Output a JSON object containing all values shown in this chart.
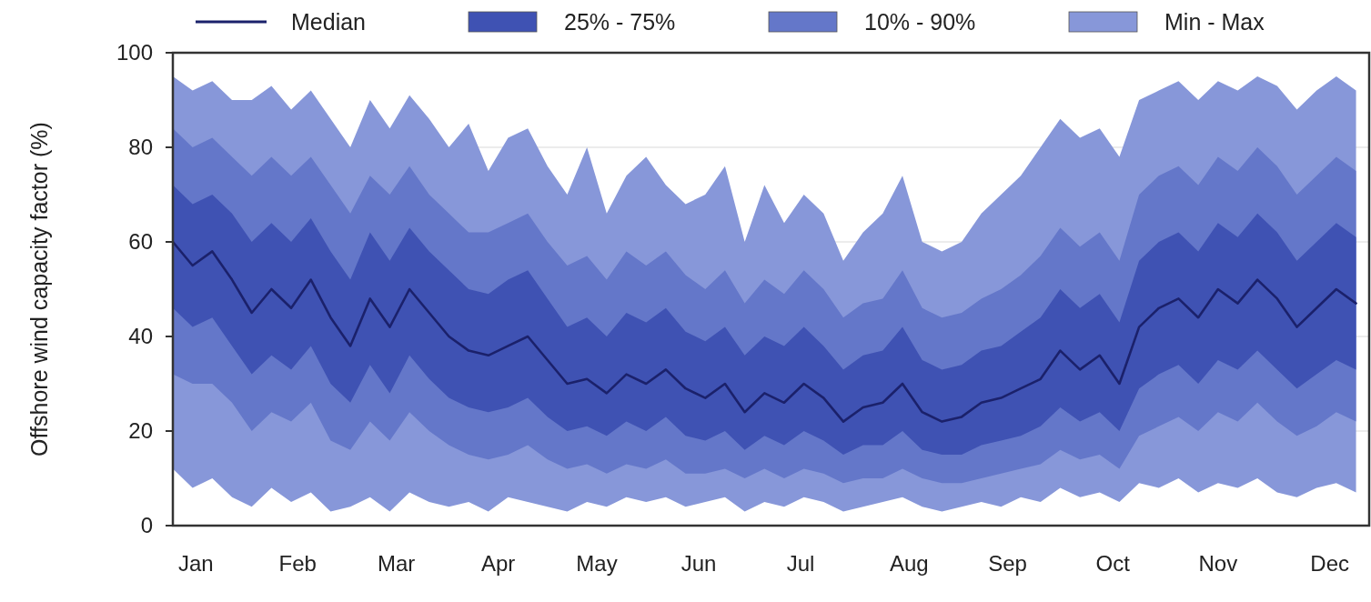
{
  "chart_data": {
    "type": "line",
    "ylabel": "Offshore wind capacity factor (%)",
    "x": [
      "--01-01",
      "--01-07",
      "--01-13",
      "--01-19",
      "--01-25",
      "--01-31",
      "--02-06",
      "--02-12",
      "--02-18",
      "--02-24",
      "--03-02",
      "--03-08",
      "--03-14",
      "--03-20",
      "--03-26",
      "--04-01",
      "--04-07",
      "--04-13",
      "--04-19",
      "--04-25",
      "--05-01",
      "--05-07",
      "--05-13",
      "--05-19",
      "--05-25",
      "--05-31",
      "--06-06",
      "--06-12",
      "--06-18",
      "--06-24",
      "--06-30",
      "--07-06",
      "--07-12",
      "--07-18",
      "--07-24",
      "--07-30",
      "--08-05",
      "--08-11",
      "--08-17",
      "--08-23",
      "--08-29",
      "--09-04",
      "--09-10",
      "--09-16",
      "--09-22",
      "--09-28",
      "--10-04",
      "--10-10",
      "--10-16",
      "--10-22",
      "--10-28",
      "--11-03",
      "--11-09",
      "--11-15",
      "--11-21",
      "--11-27",
      "--12-03",
      "--12-09",
      "--12-15",
      "--12-21",
      "--12-27"
    ],
    "xlim": [
      "--01-01",
      "--12-31"
    ],
    "xticks": [
      {
        "value": "--01-08",
        "label": "Jan"
      },
      {
        "value": "--02-08",
        "label": "Feb"
      },
      {
        "value": "--03-10",
        "label": "Mar"
      },
      {
        "value": "--04-10",
        "label": "Apr"
      },
      {
        "value": "--05-10",
        "label": "May"
      },
      {
        "value": "--06-10",
        "label": "Jun"
      },
      {
        "value": "--07-11",
        "label": "Jul"
      },
      {
        "value": "--08-13",
        "label": "Aug"
      },
      {
        "value": "--09-12",
        "label": "Sep"
      },
      {
        "value": "--10-14",
        "label": "Oct"
      },
      {
        "value": "--11-15",
        "label": "Nov"
      },
      {
        "value": "--12-19",
        "label": "Dec"
      }
    ],
    "ylim": [
      0,
      100
    ],
    "yticks": [
      0,
      20,
      40,
      60,
      80,
      100
    ],
    "grid": "y",
    "legend": "top",
    "series": [
      {
        "name": "Median",
        "color": "#1b216b",
        "values": [
          60,
          55,
          58,
          52,
          45,
          50,
          46,
          52,
          44,
          38,
          48,
          42,
          50,
          45,
          40,
          37,
          36,
          38,
          40,
          35,
          30,
          31,
          28,
          32,
          30,
          33,
          29,
          27,
          30,
          24,
          28,
          26,
          30,
          27,
          22,
          25,
          26,
          30,
          24,
          22,
          23,
          26,
          27,
          29,
          31,
          37,
          33,
          36,
          30,
          42,
          46,
          48,
          44,
          50,
          47,
          52,
          48,
          42,
          46,
          50,
          47
        ]
      },
      {
        "name": "25% - 75%",
        "color": "#3f52b3",
        "values": [
          null,
          null,
          null,
          null,
          null,
          null,
          null,
          null,
          null,
          null,
          null,
          null,
          null,
          null,
          null,
          null,
          null,
          null,
          null,
          null,
          null,
          null,
          null,
          null,
          null,
          null,
          null,
          null,
          null,
          null,
          null,
          null,
          null,
          null,
          null,
          null,
          null,
          null,
          null,
          null,
          null,
          null,
          null,
          null,
          null,
          null,
          null,
          null,
          null,
          null,
          null,
          null,
          null,
          null,
          null,
          null,
          null,
          null,
          null,
          null,
          null
        ],
        "lower": [
          46,
          42,
          44,
          38,
          32,
          36,
          33,
          38,
          30,
          26,
          34,
          28,
          36,
          31,
          27,
          25,
          24,
          25,
          27,
          23,
          20,
          21,
          19,
          22,
          20,
          23,
          19,
          18,
          20,
          16,
          19,
          17,
          20,
          18,
          15,
          17,
          17,
          20,
          16,
          15,
          15,
          17,
          18,
          19,
          21,
          25,
          22,
          24,
          20,
          29,
          32,
          34,
          30,
          35,
          33,
          37,
          33,
          29,
          32,
          35,
          33
        ],
        "upper": [
          72,
          68,
          70,
          66,
          60,
          64,
          60,
          65,
          58,
          52,
          62,
          56,
          63,
          58,
          54,
          50,
          49,
          52,
          54,
          48,
          42,
          44,
          40,
          45,
          43,
          46,
          41,
          39,
          42,
          36,
          40,
          38,
          42,
          38,
          33,
          36,
          37,
          42,
          35,
          33,
          34,
          37,
          38,
          41,
          44,
          50,
          46,
          49,
          43,
          56,
          60,
          62,
          58,
          64,
          61,
          66,
          62,
          56,
          60,
          64,
          61
        ]
      },
      {
        "name": "10% - 90%",
        "color": "#6477c9",
        "values": [
          null,
          null,
          null,
          null,
          null,
          null,
          null,
          null,
          null,
          null,
          null,
          null,
          null,
          null,
          null,
          null,
          null,
          null,
          null,
          null,
          null,
          null,
          null,
          null,
          null,
          null,
          null,
          null,
          null,
          null,
          null,
          null,
          null,
          null,
          null,
          null,
          null,
          null,
          null,
          null,
          null,
          null,
          null,
          null,
          null,
          null,
          null,
          null,
          null,
          null,
          null,
          null,
          null,
          null,
          null,
          null,
          null,
          null,
          null,
          null,
          null
        ],
        "lower": [
          32,
          30,
          30,
          26,
          20,
          24,
          22,
          26,
          18,
          16,
          22,
          18,
          24,
          20,
          17,
          15,
          14,
          15,
          17,
          14,
          12,
          13,
          11,
          13,
          12,
          14,
          11,
          11,
          12,
          10,
          12,
          10,
          12,
          11,
          9,
          10,
          10,
          12,
          10,
          9,
          9,
          10,
          11,
          12,
          13,
          16,
          14,
          15,
          12,
          19,
          21,
          23,
          20,
          24,
          22,
          26,
          22,
          19,
          21,
          24,
          22
        ],
        "upper": [
          84,
          80,
          82,
          78,
          74,
          78,
          74,
          78,
          72,
          66,
          74,
          70,
          76,
          70,
          66,
          62,
          62,
          64,
          66,
          60,
          55,
          57,
          52,
          58,
          55,
          58,
          53,
          50,
          54,
          47,
          52,
          49,
          54,
          50,
          44,
          47,
          48,
          54,
          46,
          44,
          45,
          48,
          50,
          53,
          57,
          63,
          59,
          62,
          56,
          70,
          74,
          76,
          72,
          78,
          75,
          80,
          76,
          70,
          74,
          78,
          75
        ]
      },
      {
        "name": "Min - Max",
        "color": "#8797d9",
        "values": [
          null,
          null,
          null,
          null,
          null,
          null,
          null,
          null,
          null,
          null,
          null,
          null,
          null,
          null,
          null,
          null,
          null,
          null,
          null,
          null,
          null,
          null,
          null,
          null,
          null,
          null,
          null,
          null,
          null,
          null,
          null,
          null,
          null,
          null,
          null,
          null,
          null,
          null,
          null,
          null,
          null,
          null,
          null,
          null,
          null,
          null,
          null,
          null,
          null,
          null,
          null,
          null,
          null,
          null,
          null,
          null,
          null,
          null,
          null,
          null,
          null
        ],
        "lower": [
          12,
          8,
          10,
          6,
          4,
          8,
          5,
          7,
          3,
          4,
          6,
          3,
          7,
          5,
          4,
          5,
          3,
          6,
          5,
          4,
          3,
          5,
          4,
          6,
          5,
          6,
          4,
          5,
          6,
          3,
          5,
          4,
          6,
          5,
          3,
          4,
          5,
          6,
          4,
          3,
          4,
          5,
          4,
          6,
          5,
          8,
          6,
          7,
          5,
          9,
          8,
          10,
          7,
          9,
          8,
          10,
          7,
          6,
          8,
          9,
          7
        ],
        "upper": [
          95,
          92,
          94,
          90,
          90,
          93,
          88,
          92,
          86,
          80,
          90,
          84,
          91,
          86,
          80,
          85,
          75,
          82,
          84,
          76,
          70,
          80,
          66,
          74,
          78,
          72,
          68,
          70,
          76,
          60,
          72,
          64,
          70,
          66,
          56,
          62,
          66,
          74,
          60,
          58,
          60,
          66,
          70,
          74,
          80,
          86,
          82,
          84,
          78,
          90,
          92,
          94,
          90,
          94,
          92,
          95,
          93,
          88,
          92,
          95,
          92
        ]
      }
    ]
  }
}
